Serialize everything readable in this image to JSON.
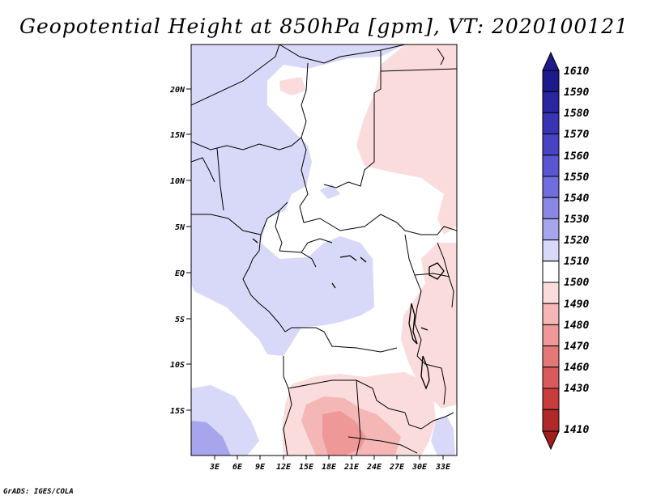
{
  "title": "Geopotential Height at 850hPa [gpm], VT: 2020100121",
  "footer": "GrADS: IGES/COLA",
  "map": {
    "lat_labels": [
      "20N",
      "15N",
      "10N",
      "5N",
      "EQ",
      "5S",
      "10S",
      "15S"
    ],
    "lon_labels": [
      "3E",
      "6E",
      "9E",
      "12E",
      "15E",
      "18E",
      "21E",
      "24E",
      "27E",
      "30E",
      "33E"
    ]
  },
  "colorbar": {
    "top_label": "1610",
    "levels": [
      {
        "label": "1610",
        "color": "#1e1a8c"
      },
      {
        "label": "1590",
        "color": "#2a26a0"
      },
      {
        "label": "1580",
        "color": "#3834b4"
      },
      {
        "label": "1570",
        "color": "#4843c4"
      },
      {
        "label": "1560",
        "color": "#5a56d2"
      },
      {
        "label": "1550",
        "color": "#706ddc"
      },
      {
        "label": "1540",
        "color": "#8a88e4"
      },
      {
        "label": "1530",
        "color": "#a7a6ec"
      },
      {
        "label": "1520",
        "color": "#d8d8f8"
      },
      {
        "label": "1510",
        "color": "#ffffff"
      },
      {
        "label": "1500",
        "color": "#fbdcdc"
      },
      {
        "label": "1490",
        "color": "#f5b6b6"
      },
      {
        "label": "1480",
        "color": "#ee9898"
      },
      {
        "label": "1470",
        "color": "#e47878"
      },
      {
        "label": "1460",
        "color": "#d85a5a"
      },
      {
        "label": "1430",
        "color": "#c83c3c"
      },
      {
        "label": "1410",
        "color": "#b02828"
      }
    ],
    "bottom_color": "#a01e1e"
  }
}
